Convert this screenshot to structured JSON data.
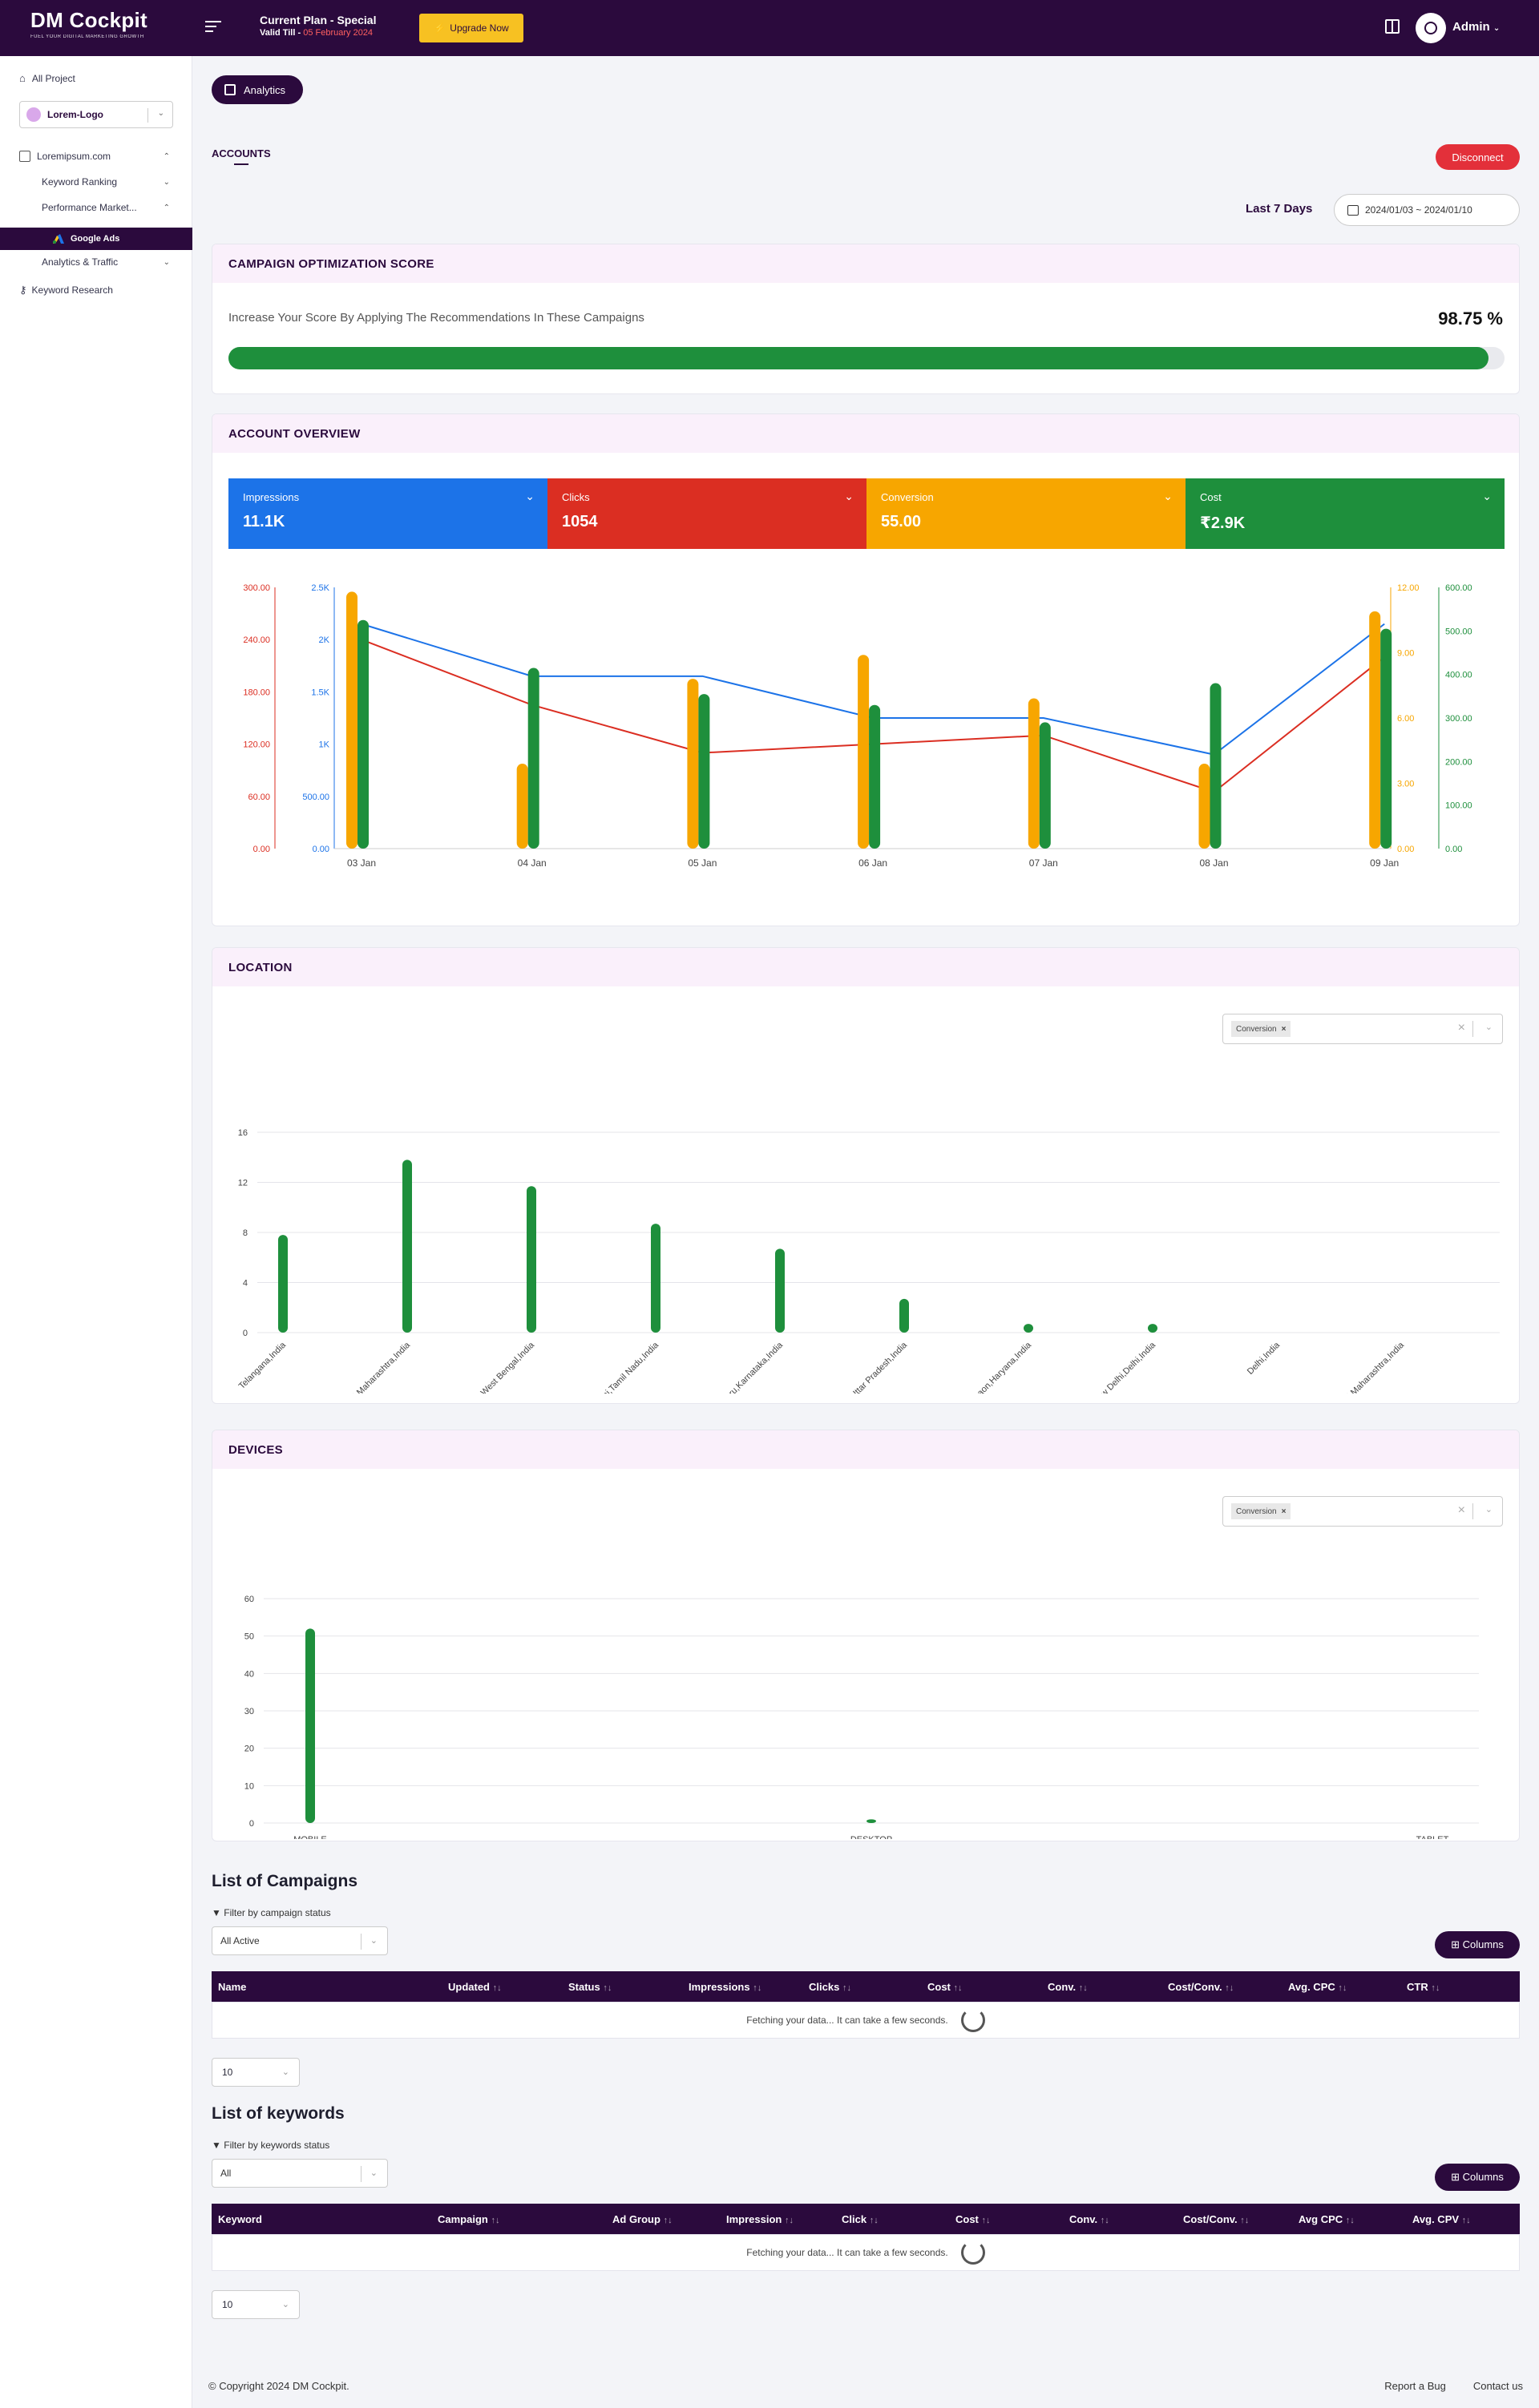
{
  "app": {
    "brand": "DM Cockpit",
    "brand_tagline": "FUEL YOUR DIGITAL MARKETING GROWTH",
    "plan_title": "Current Plan - Special",
    "plan_valid_label": "Valid Till -",
    "plan_valid_date": "05 February 2024",
    "upgrade_label": "Upgrade Now",
    "user_name": "Admin"
  },
  "sidebar": {
    "all_project": "All Project",
    "logo_select": "Lorem-Logo",
    "site": "Loremipsum.com",
    "keyword_ranking": "Keyword Ranking",
    "performance": "Performance Market...",
    "google_ads": "Google Ads",
    "analytics_traffic": "Analytics & Traffic",
    "keyword_research": "Keyword Research"
  },
  "header": {
    "chip_label": "Analytics",
    "accounts_tab": "ACCOUNTS",
    "disconnect_label": "Disconnect",
    "range_label": "Last 7 Days",
    "date_range": "2024/01/03 ~ 2024/01/10"
  },
  "score": {
    "title": "CAMPAIGN OPTIMIZATION SCORE",
    "text": "Increase Your Score By Applying The Recommendations In These Campaigns",
    "value": "98.75 %",
    "percent": 98.75
  },
  "overview": {
    "title": "ACCOUNT OVERVIEW",
    "metrics": [
      {
        "label": "Impressions",
        "value": "11.1K",
        "color": "#1c73e8"
      },
      {
        "label": "Clicks",
        "value": "1054",
        "color": "#db2e22"
      },
      {
        "label": "Conversion",
        "value": "55.00",
        "color": "#f7a600"
      },
      {
        "label": "Cost",
        "value": "₹2.9K",
        "color": "#1e8f3c"
      }
    ]
  },
  "chart_data": [
    {
      "type": "bar",
      "id": "overview",
      "categories": [
        "03 Jan",
        "04 Jan",
        "05 Jan",
        "06 Jan",
        "07 Jan",
        "08 Jan",
        "09 Jan"
      ],
      "series": [
        {
          "name": "Impressions",
          "kind": "line",
          "axis": "impressions",
          "color": "#1c73e8",
          "values": [
            2150,
            1650,
            1650,
            1250,
            1250,
            900,
            2150
          ]
        },
        {
          "name": "Clicks",
          "kind": "line",
          "axis": "clicks",
          "color": "#db2e22",
          "values": [
            240,
            165,
            110,
            120,
            130,
            65,
            220
          ]
        },
        {
          "name": "Conversion",
          "kind": "bar",
          "axis": "conversion",
          "color": "#f7a600",
          "values": [
            11.8,
            3.9,
            7.8,
            8.9,
            6.9,
            3.9,
            10.9
          ]
        },
        {
          "name": "Cost",
          "kind": "bar",
          "axis": "cost",
          "color": "#1e8f3c",
          "values": [
            525,
            415,
            355,
            330,
            290,
            380,
            505
          ]
        }
      ],
      "axes": {
        "clicks": {
          "min": 0,
          "max": 300,
          "ticks": [
            "0.00",
            "60.00",
            "120.00",
            "180.00",
            "240.00",
            "300.00"
          ],
          "color": "#db2e22"
        },
        "impressions": {
          "min": 0,
          "max": 2500,
          "ticks": [
            "0.00",
            "500.00",
            "1K",
            "1.5K",
            "2K",
            "2.5K"
          ],
          "color": "#1c73e8"
        },
        "conversion": {
          "min": 0,
          "max": 12,
          "ticks": [
            "0.00",
            "3.00",
            "6.00",
            "9.00",
            "12.00"
          ],
          "color": "#f7a600"
        },
        "cost": {
          "min": 0,
          "max": 600,
          "ticks": [
            "0.00",
            "100.00",
            "200.00",
            "300.00",
            "400.00",
            "500.00",
            "600.00"
          ],
          "color": "#1e8f3c"
        }
      }
    },
    {
      "type": "bar",
      "id": "location",
      "title": "LOCATION",
      "categories": [
        "Telangana,India",
        "Mumbai,Maharashtra,India",
        "Kolkata,West Bengal,India",
        "Chennai,Tamil Nadu,India",
        "Bengaluru,Karnataka,India",
        "Noida,Uttar Pradesh,India",
        "Gurgaon,Haryana,India",
        "New Delhi,Delhi,India",
        "Delhi,India",
        "Mumbai,Maharashtra,India"
      ],
      "values": [
        7.8,
        13.8,
        11.7,
        8.7,
        6.7,
        2.7,
        0.7,
        0.7,
        0,
        0
      ],
      "ylim": [
        0,
        16
      ],
      "ticks": [
        0,
        4,
        8,
        12,
        16
      ],
      "color": "#1e8f3c"
    },
    {
      "type": "bar",
      "id": "devices",
      "title": "DEVICES",
      "categories": [
        "MOBILE",
        "DESKTOP",
        "TABLET"
      ],
      "values": [
        52,
        1,
        0
      ],
      "ylim": [
        0,
        60
      ],
      "ticks": [
        0,
        10,
        20,
        30,
        40,
        50,
        60
      ],
      "color": "#1e8f3c"
    }
  ],
  "location": {
    "title": "LOCATION",
    "filter_tag": "Conversion"
  },
  "devices": {
    "title": "DEVICES",
    "filter_tag": "Conversion"
  },
  "campaigns": {
    "title": "List of Campaigns",
    "filter_label": "Filter by campaign status",
    "filter_value": "All Active",
    "columns_label": "Columns",
    "headers": [
      "Name",
      "Updated",
      "Status",
      "Impressions",
      "Clicks",
      "Cost",
      "Conv.",
      "Cost/Conv.",
      "Avg. CPC",
      "CTR"
    ],
    "loading": "Fetching your data... It can take a few seconds.",
    "page_size": "10"
  },
  "keywords": {
    "title": "List of keywords",
    "filter_label": "Filter by keywords status",
    "filter_value": "All",
    "columns_label": "Columns",
    "headers": [
      "Keyword",
      "Campaign",
      "Ad Group",
      "Impression",
      "Click",
      "Cost",
      "Conv.",
      "Cost/Conv.",
      "Avg CPC",
      "Avg. CPV"
    ],
    "loading": "Fetching your data... It can take a few seconds.",
    "page_size": "10"
  },
  "footer": {
    "copyright": "© Copyright 2024 DM Cockpit.",
    "report_bug": "Report a Bug",
    "contact": "Contact us"
  }
}
